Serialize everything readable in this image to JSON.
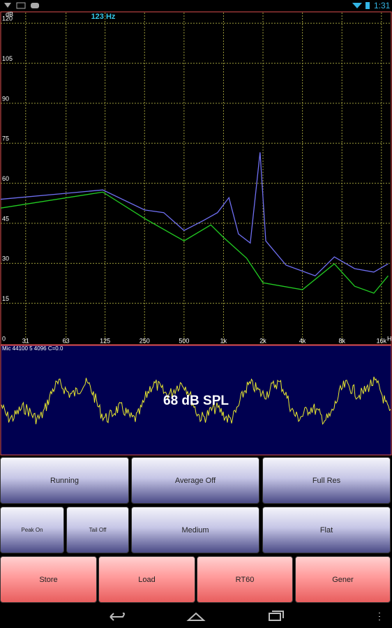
{
  "status_bar": {
    "time": "1:31"
  },
  "spectrum": {
    "type": "line",
    "y_unit": "dB",
    "x_unit": "H",
    "frequency_readout": "123 Hz",
    "xscale": "log",
    "grid": true,
    "xlim": [
      20,
      18800
    ],
    "ylim": [
      0,
      124
    ],
    "xticks": [
      31,
      63,
      125,
      250,
      500,
      {
        "value": 1000,
        "label": "1k"
      },
      {
        "value": 2000,
        "label": "2k"
      },
      {
        "value": 4000,
        "label": "4k"
      },
      {
        "value": 8000,
        "label": "8k"
      },
      {
        "value": 16000,
        "label": "16k"
      }
    ],
    "yticks": [
      0,
      15,
      30,
      45,
      60,
      75,
      90,
      105,
      120
    ],
    "series": [
      {
        "color": "#6f6ff2",
        "x": [
          20,
          120,
          250,
          350,
          500,
          700,
          900,
          1100,
          1300,
          1600,
          1900,
          2100,
          3000,
          5000,
          7000,
          10000,
          14000,
          18000
        ],
        "values": [
          54,
          57.5,
          50,
          49,
          42.3,
          46,
          49,
          54.6,
          41,
          37.6,
          71.6,
          38.4,
          29.3,
          25.3,
          32.4,
          28,
          26.7,
          29.8
        ]
      },
      {
        "color": "#22cc22",
        "x": [
          20,
          120,
          250,
          500,
          800,
          1000,
          1500,
          2000,
          4000,
          7000,
          10000,
          14000,
          18000
        ],
        "values": [
          50.7,
          56.7,
          46.8,
          38.4,
          44.4,
          39.7,
          31.9,
          22.7,
          20.1,
          29.8,
          21.4,
          18.8,
          25.3
        ]
      }
    ]
  },
  "scope": {
    "info": "Mic 44100 5 4096 C=0.0",
    "level": "68 dB SPL"
  },
  "buttons": {
    "rows": [
      [
        "Running",
        "Average Off",
        "Full Res"
      ],
      [
        "Peak On",
        "Tail Off",
        "Medium",
        "Flat"
      ],
      [
        "Store",
        "Load",
        "RT60",
        "Gener"
      ]
    ]
  }
}
